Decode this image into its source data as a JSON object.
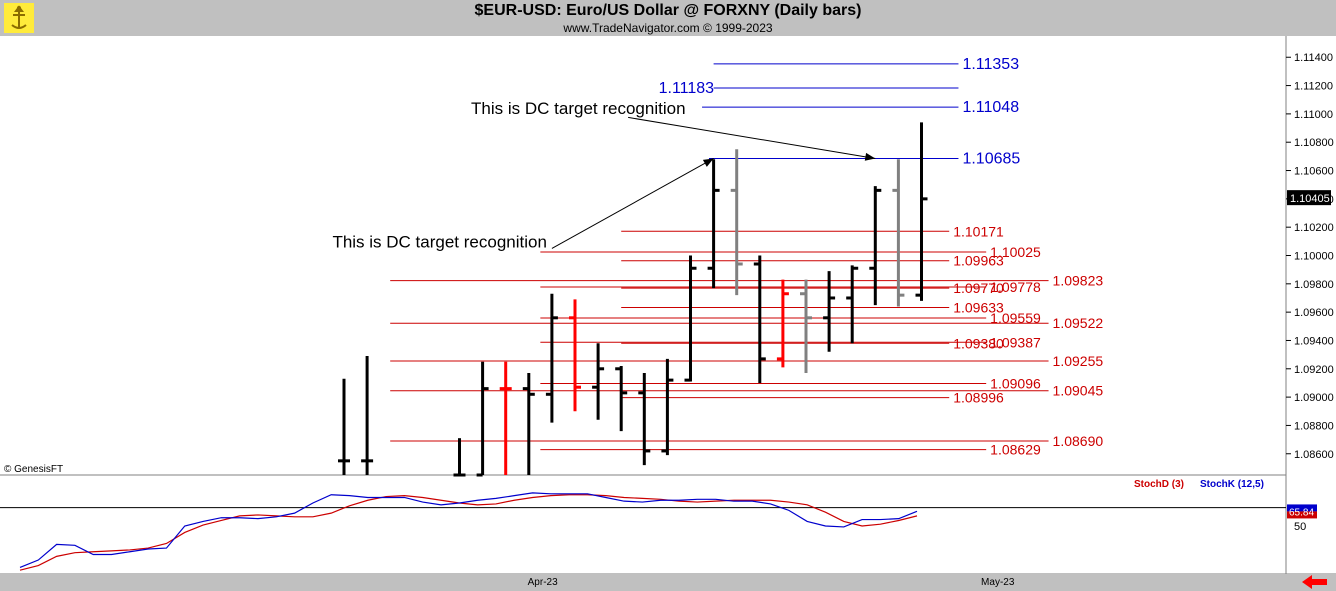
{
  "header": {
    "title": "$EUR-USD:  Euro/US Dollar @ FORXNY  (Daily bars)",
    "subtitle": "www.TradeNavigator.com © 1999-2023"
  },
  "copyright": "© GenesisFT",
  "colors": {
    "bull": "#000000",
    "bear": "#ff0000",
    "gray": "#808080",
    "blue": "#0000cc",
    "red": "#cc0000",
    "stochD": "#cc0000",
    "stochK": "#0000cc",
    "last_bg": "#000000"
  },
  "chart_data": [
    {
      "type": "bar",
      "title": "$EUR-USD:  Euro/US Dollar @ FORXNY  (Daily bars)",
      "y_axis": {
        "side": "right",
        "ylim": [
          1.0845,
          1.1155
        ],
        "ticks": [
          "1.11400",
          "1.11200",
          "1.11000",
          "1.10800",
          "1.10600",
          "1.10400",
          "1.10200",
          "1.10000",
          "1.09800",
          "1.09600",
          "1.09400",
          "1.09200",
          "1.09000",
          "1.08800",
          "1.08600"
        ]
      },
      "x_axis": {
        "labels": [
          {
            "label": "Apr-23",
            "index": 8.6
          },
          {
            "label": "May-23",
            "index": 28.3
          }
        ]
      },
      "last_price": "1.10405",
      "bars": [
        {
          "i": 0,
          "o": 1.0855,
          "h": 1.0913,
          "l": 1.0845,
          "c": 1.0855,
          "color": "black"
        },
        {
          "i": 1,
          "o": 1.0855,
          "h": 1.0929,
          "l": 1.0845,
          "c": 1.0855,
          "color": "black"
        },
        {
          "i": 5,
          "o": 1.0845,
          "h": 1.0871,
          "l": 1.0845,
          "c": 1.0845,
          "color": "black"
        },
        {
          "i": 6,
          "o": 1.0845,
          "h": 1.0925,
          "l": 1.0845,
          "c": 1.0906,
          "color": "black"
        },
        {
          "i": 7,
          "o": 1.0906,
          "h": 1.0925,
          "l": 1.0845,
          "c": 1.0906,
          "color": "red"
        },
        {
          "i": 8,
          "o": 1.0906,
          "h": 1.0917,
          "l": 1.0845,
          "c": 1.0902,
          "color": "black"
        },
        {
          "i": 9,
          "o": 1.0902,
          "h": 1.0973,
          "l": 1.0882,
          "c": 1.0956,
          "color": "black"
        },
        {
          "i": 10,
          "o": 1.0956,
          "h": 1.0969,
          "l": 1.089,
          "c": 1.0907,
          "color": "red"
        },
        {
          "i": 11,
          "o": 1.0907,
          "h": 1.0938,
          "l": 1.0884,
          "c": 1.092,
          "color": "black"
        },
        {
          "i": 12,
          "o": 1.092,
          "h": 1.0922,
          "l": 1.0876,
          "c": 1.0903,
          "color": "black"
        },
        {
          "i": 13,
          "o": 1.0903,
          "h": 1.0917,
          "l": 1.0852,
          "c": 1.0862,
          "color": "black"
        },
        {
          "i": 14,
          "o": 1.0862,
          "h": 1.0927,
          "l": 1.0859,
          "c": 1.0912,
          "color": "black"
        },
        {
          "i": 15,
          "o": 1.0912,
          "h": 1.1,
          "l": 1.0911,
          "c": 1.0991,
          "color": "black"
        },
        {
          "i": 16,
          "o": 1.0991,
          "h": 1.1068,
          "l": 1.0977,
          "c": 1.1046,
          "color": "black"
        },
        {
          "i": 17,
          "o": 1.1046,
          "h": 1.1075,
          "l": 1.0972,
          "c": 1.0994,
          "color": "gray"
        },
        {
          "i": 18,
          "o": 1.0994,
          "h": 1.1,
          "l": 1.091,
          "c": 1.0927,
          "color": "black"
        },
        {
          "i": 19,
          "o": 1.0927,
          "h": 1.0983,
          "l": 1.0921,
          "c": 1.0973,
          "color": "red"
        },
        {
          "i": 20,
          "o": 1.0973,
          "h": 1.0983,
          "l": 1.0917,
          "c": 1.0956,
          "color": "gray"
        },
        {
          "i": 21,
          "o": 1.0956,
          "h": 1.0989,
          "l": 1.0932,
          "c": 1.097,
          "color": "black"
        },
        {
          "i": 22,
          "o": 1.097,
          "h": 1.0993,
          "l": 1.0938,
          "c": 1.0991,
          "color": "black"
        },
        {
          "i": 23,
          "o": 1.0991,
          "h": 1.1049,
          "l": 1.0965,
          "c": 1.1046,
          "color": "black"
        },
        {
          "i": 24,
          "o": 1.1046,
          "h": 1.1068,
          "l": 1.0964,
          "c": 1.0972,
          "color": "gray"
        },
        {
          "i": 25,
          "o": 1.0972,
          "h": 1.1094,
          "l": 1.0968,
          "c": 1.104,
          "color": "black"
        }
      ],
      "levels": [
        {
          "value": 1.11353,
          "label": "1.11353",
          "color": "blue",
          "from": 16,
          "to": 26.6,
          "label_side": "right"
        },
        {
          "value": 1.11183,
          "label": "1.11183",
          "color": "blue",
          "from": 16,
          "to": 26.6,
          "label_side": "left"
        },
        {
          "value": 1.11048,
          "label": "1.11048",
          "color": "blue",
          "from": 15.5,
          "to": 26.6,
          "label_side": "right"
        },
        {
          "value": 1.10685,
          "label": "1.10685",
          "color": "blue",
          "from": 15.8,
          "to": 26.6,
          "label_side": "right"
        },
        {
          "value": 1.10171,
          "label": "1.10171",
          "color": "red",
          "from": 12,
          "to": 26.2,
          "label_side": "right"
        },
        {
          "value": 1.10025,
          "label": "1.10025",
          "color": "red",
          "from": 8.5,
          "to": 27.8,
          "label_side": "right"
        },
        {
          "value": 1.09963,
          "label": "1.09963",
          "color": "red",
          "from": 12,
          "to": 26.2,
          "label_side": "right"
        },
        {
          "value": 1.09823,
          "label": "1.09823",
          "color": "red",
          "from": 2,
          "to": 30.5,
          "label_side": "right"
        },
        {
          "value": 1.09778,
          "label": "1.09778",
          "color": "red",
          "from": 8.5,
          "to": 27.8,
          "label_side": "right"
        },
        {
          "value": 1.0977,
          "label": "1.09770",
          "color": "red",
          "from": 12,
          "to": 26.2,
          "label_side": "right"
        },
        {
          "value": 1.09633,
          "label": "1.09633",
          "color": "red",
          "from": 12,
          "to": 26.2,
          "label_side": "right"
        },
        {
          "value": 1.09559,
          "label": "1.09559",
          "color": "red",
          "from": 8.5,
          "to": 27.8,
          "label_side": "right"
        },
        {
          "value": 1.09522,
          "label": "1.09522",
          "color": "red",
          "from": 2,
          "to": 30.5,
          "label_side": "right"
        },
        {
          "value": 1.09387,
          "label": "1.09387",
          "color": "red",
          "from": 8.5,
          "to": 27.8,
          "label_side": "right"
        },
        {
          "value": 1.0938,
          "label": "1.09380",
          "color": "red",
          "from": 12,
          "to": 26.2,
          "label_side": "right"
        },
        {
          "value": 1.09255,
          "label": "1.09255",
          "color": "red",
          "from": 2,
          "to": 30.5,
          "label_side": "right"
        },
        {
          "value": 1.09096,
          "label": "1.09096",
          "color": "red",
          "from": 8.5,
          "to": 27.8,
          "label_side": "right"
        },
        {
          "value": 1.09045,
          "label": "1.09045",
          "color": "red",
          "from": 2,
          "to": 30.5,
          "label_side": "right"
        },
        {
          "value": 1.08996,
          "label": "1.08996",
          "color": "red",
          "from": 12,
          "to": 26.2,
          "label_side": "right"
        },
        {
          "value": 1.0869,
          "label": "1.08690",
          "color": "red",
          "from": 2,
          "to": 30.5,
          "label_side": "right"
        },
        {
          "value": 1.08629,
          "label": "1.08629",
          "color": "red",
          "from": 8.5,
          "to": 27.8,
          "label_side": "right"
        }
      ],
      "annotations": [
        {
          "text": "This is DC target recognition",
          "text_at": [
            5.5,
            1.1104
          ],
          "arrow_from": [
            12.3,
            1.10975
          ],
          "arrow_to": [
            23.0,
            1.10685
          ]
        },
        {
          "text": "This is DC target recognition",
          "text_at": [
            -0.5,
            1.101
          ],
          "arrow_from": [
            9.0,
            1.1005
          ],
          "arrow_to": [
            16.0,
            1.10685
          ]
        }
      ]
    },
    {
      "type": "line",
      "title": "",
      "y_axis": {
        "ylim": [
          0,
          100
        ],
        "ticks": [
          {
            "value": 50,
            "label": "50"
          }
        ]
      },
      "last_value": "65.84",
      "series": [
        {
          "name": "StochD (3)",
          "color": "#cc0000",
          "values": [
            2,
            7,
            17,
            21,
            22,
            23,
            24,
            26,
            31,
            43,
            51,
            56,
            61,
            62,
            61,
            60,
            60,
            64,
            72,
            78,
            82,
            83,
            81,
            78,
            75,
            73,
            74,
            78,
            81,
            83,
            84,
            84,
            83,
            81,
            80,
            79,
            77,
            76,
            77,
            78,
            78,
            78,
            76,
            73,
            65,
            55,
            50,
            52,
            56,
            61
          ]
        },
        {
          "name": "StochK (12,5)",
          "color": "#0000cc",
          "values": [
            5,
            13,
            30,
            29,
            19,
            19,
            22,
            25,
            26,
            50,
            55,
            59,
            59,
            58,
            60,
            64,
            75,
            84,
            83,
            81,
            81,
            81,
            76,
            73,
            75,
            78,
            80,
            83,
            86,
            85,
            85,
            85,
            81,
            77,
            76,
            78,
            78,
            79,
            79,
            77,
            77,
            74,
            67,
            55,
            50,
            49,
            57,
            57,
            58,
            66
          ]
        }
      ]
    }
  ]
}
